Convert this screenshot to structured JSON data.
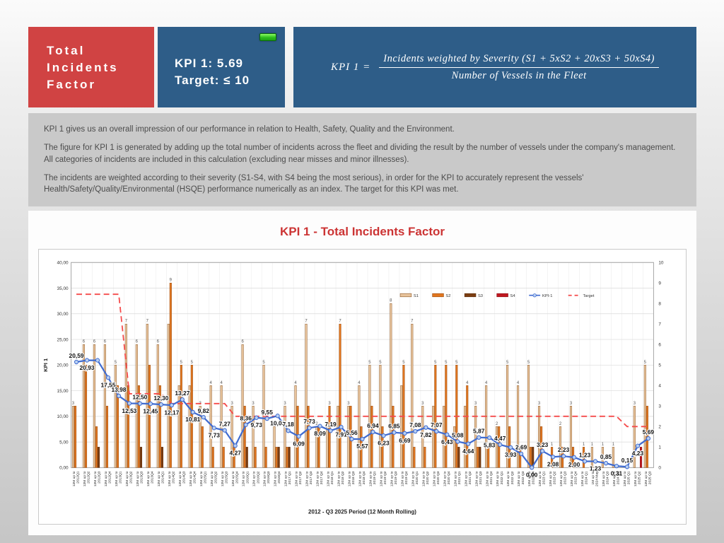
{
  "header": {
    "title": "Total Incidents Factor",
    "kpi_label": "KPI 1: 5.69",
    "target_label": "Target: ≤ 10",
    "status_led_color": "#2ebf1e",
    "formula": {
      "lhs": "KPI 1  =",
      "numerator": "Incidents  weighted  by  Severity  (S1 + 5xS2 + 20xS3 + 50xS4)",
      "denominator": "Number  of  Vessels in the Fleet"
    }
  },
  "description": {
    "p1": "KPI 1 gives us an overall impression of our performance in relation to Health, Safety, Quality and the Environment.",
    "p2": "The figure for KPI 1 is generated by adding up the total number of incidents across the fleet and dividing the result by the number of vessels under the company's management. All categories of incidents are included in this calculation (excluding near misses and minor illnesses).",
    "p3": "The incidents are weighted according to their severity (S1-S4, with S4 being the most serious), in order for the KPI to accurately represent the vessels' Health/Safety/Quality/Environmental (HSQE) performance numerically as an index. The target for this KPI was met."
  },
  "chart_data": {
    "type": "bar+line",
    "title": "KPI 1 - Total Incidents Factor",
    "xlabel": "2012 - Q3 2025 Period (12 Month Rolling)",
    "ylabel": "KPI 1",
    "left_axis": {
      "min": 0,
      "max": 40,
      "step": 5,
      "decimal": "comma"
    },
    "right_axis": {
      "min": 0,
      "max": 10,
      "step": 1
    },
    "grid": true,
    "legend_position": "top-right-inside",
    "categories": [
      "12M up to|2012Q1",
      "12M up to|2012Q2",
      "12M up to|2012Q3",
      "12M up to|2012Q4",
      "12M up to|2013Q1",
      "12M up to|2013Q2",
      "12M up to|2013Q3",
      "12M up to|2013Q4",
      "12M up to|2014Q1",
      "12M up to|2014Q2",
      "12M up to|2014Q3",
      "12M up to|2014Q4",
      "12M up to|2015Q1",
      "12M up to|2015Q2",
      "12M up to|2015Q3",
      "12M up to|2015Q4",
      "12M up to|2016Q1",
      "12M up to|2016Q2",
      "12M up to|2016Q3",
      "12M up to|2016Q4",
      "12M up to|2017 Q1",
      "12M up to|2017 Q2",
      "12M up to|2017 Q3",
      "12M up to|2017 Q4",
      "12M up to|2018 Q1",
      "12M up to|2018 Q2",
      "12M up to|2018 Q3",
      "12M up to|2018 Q4",
      "12M up to|2019 Q1",
      "12M up to|2019 Q2",
      "12M up to|2019 Q3",
      "12M up to|2019 Q4",
      "12M up to|2020 Q1",
      "12M up to|2020 Q2",
      "12M up to|2020 Q3",
      "12M up to|2020 Q4",
      "12M up to|2021 Q1",
      "12M up to|2021 Q2",
      "12M up to|2021 Q3",
      "12M up to|2021 Q4",
      "12M up to|2022 Q1",
      "12M up to|2022 Q2",
      "12M up to|2022 Q3",
      "12M up to|2022 Q4",
      "12M up to|2023 Q1",
      "12M up to|2023 Q2",
      "12M up to|2023 Q3",
      "12M up to|2023 Q4",
      "12M up to|2024 Q1",
      "1M up to|2024 May",
      "12M up to|2024 Q3",
      "12M up to|2024 Q4",
      "12M up to|2025 Q1",
      "12M up to|2025 Q2",
      "12M up to|2025 Q3"
    ],
    "series": [
      {
        "name": "S1",
        "color": "#e8c49c",
        "border": "#8e5a2b",
        "values": [
          3,
          6,
          6,
          6,
          5,
          7,
          6,
          7,
          6,
          7,
          4,
          4,
          3,
          4,
          4,
          3,
          6,
          3,
          5,
          2,
          3,
          4,
          7,
          2,
          2,
          3,
          3,
          4,
          5,
          5,
          8,
          4,
          7,
          3,
          3,
          3,
          2,
          3,
          3,
          4,
          2,
          5,
          4,
          5,
          3,
          0,
          2,
          3,
          0,
          1,
          1,
          1,
          0,
          3,
          5
        ]
      },
      {
        "name": "S2",
        "color": "#e1761f",
        "border": "#9a4d12",
        "values": [
          3,
          5,
          2,
          3,
          4,
          4,
          4,
          5,
          4,
          9,
          5,
          5,
          2,
          1,
          1,
          1,
          3,
          1,
          1,
          1,
          1,
          3,
          3,
          2,
          3,
          7,
          3,
          2,
          3,
          2,
          3,
          5,
          1,
          1,
          5,
          5,
          5,
          4,
          1,
          1,
          2,
          2,
          1,
          1,
          2,
          1,
          1,
          1,
          1,
          0,
          0,
          0,
          0,
          0,
          3
        ]
      },
      {
        "name": "S3",
        "color": "#7c3d11",
        "border": "#5a2b0b",
        "values": [
          0,
          0,
          1,
          0,
          0,
          0,
          1,
          0,
          1,
          0,
          0,
          0,
          0,
          0,
          0,
          0,
          1,
          0,
          0,
          1,
          1,
          0,
          0,
          0,
          0,
          0,
          0,
          0,
          0,
          0,
          0,
          0,
          0,
          0,
          0,
          0,
          1,
          0,
          1,
          0,
          0,
          0,
          0,
          1,
          0,
          0,
          0,
          0,
          0,
          0,
          0,
          0,
          0,
          0,
          0
        ]
      },
      {
        "name": "S4",
        "color": "#c01820",
        "border": "#8a1016",
        "values": [
          0,
          0,
          0,
          0,
          0,
          0,
          0,
          0,
          0,
          0,
          0,
          0,
          0,
          0,
          0,
          0,
          0,
          0,
          0,
          0,
          0,
          0,
          0,
          0,
          0,
          0,
          0,
          0,
          0,
          0,
          0,
          0,
          0,
          0,
          0,
          0,
          0,
          0,
          0,
          0,
          0,
          0,
          0,
          0,
          0,
          0,
          0,
          0,
          0,
          0,
          0,
          0,
          0,
          1,
          0
        ]
      }
    ],
    "kpi_line": {
      "name": "KPI-1",
      "color": "#3f6bd0",
      "marker_fill": "#b9d0f2",
      "values": [
        20.59,
        20.93,
        20.93,
        17.55,
        13.98,
        12.53,
        12.5,
        12.45,
        12.3,
        12.17,
        13.27,
        10.81,
        9.82,
        7.73,
        7.27,
        4.27,
        8.36,
        9.73,
        9.55,
        10.09,
        7.18,
        6.09,
        7.73,
        8.09,
        7.19,
        7.91,
        5.56,
        5.57,
        6.94,
        6.23,
        6.85,
        6.69,
        7.08,
        7.82,
        7.07,
        6.43,
        5.08,
        4.64,
        5.87,
        5.83,
        4.47,
        3.93,
        2.69,
        0.0,
        3.23,
        2.08,
        2.23,
        2.0,
        1.23,
        1.23,
        0.85,
        0.31,
        0.15,
        4.23,
        5.69
      ],
      "labels": [
        "20,59",
        "20,93",
        "",
        "17,55",
        "13,98",
        "12,53",
        "12,50",
        "12,45",
        "12,30",
        "12,17",
        "13,27",
        "10,81",
        "9,82",
        "7,73",
        "7,27",
        "4,27",
        "8,36",
        "9,73",
        "9,55",
        "10,09",
        "7,18",
        "6,09",
        "7,73",
        "8,09",
        "7,19",
        "7,91",
        "5,56",
        "5,57",
        "6,94",
        "6,23",
        "6,85",
        "6,69",
        "7,08",
        "7,82",
        "7,07",
        "6,43",
        "5,08",
        "4,64",
        "5,87",
        "5,83",
        "4,47",
        "3,93",
        "2,69",
        "0,00",
        "3,23",
        "2,08",
        "2,23",
        "2,00",
        "1,23",
        "1,23",
        "0,85",
        "0,31",
        "0,15",
        "4,23",
        "5,69"
      ]
    },
    "target": {
      "name": "Target",
      "color": "#f54b4b",
      "values": [
        8.45,
        8.45,
        8.45,
        8.45,
        8.45,
        3.6,
        3.6,
        3.6,
        3.6,
        3.12,
        3.12,
        3.12,
        3.12,
        3.12,
        3.12,
        2.5,
        2.5,
        2.5,
        2.5,
        2.5,
        2.5,
        2.5,
        2.5,
        2.5,
        2.5,
        2.5,
        2.5,
        2.5,
        2.5,
        2.5,
        2.5,
        2.5,
        2.5,
        2.5,
        2.5,
        2.5,
        2.5,
        2.5,
        2.5,
        2.5,
        2.5,
        2.5,
        2.5,
        2.5,
        2.5,
        2.5,
        2.5,
        2.5,
        2.5,
        2.5,
        2.5,
        2.5,
        2.0,
        2.0,
        2.0
      ]
    }
  }
}
